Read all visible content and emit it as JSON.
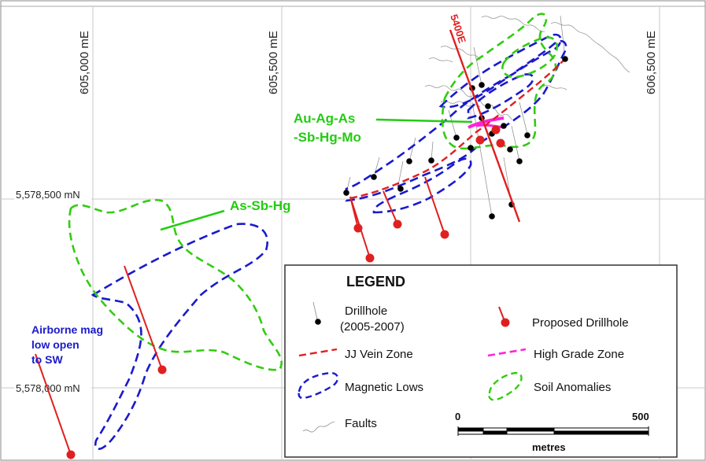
{
  "grid": {
    "eastings": [
      "605,000 mE",
      "605,500 mE",
      "606,000 mE",
      "606,500 mE"
    ],
    "northings": [
      "5,578,500 mN",
      "5,578,000 mN"
    ]
  },
  "annotations": {
    "au_ag_as_line1": "Au-Ag-As",
    "au_ag_as_line2": "-Sb-Hg-Mo",
    "as_sb_hg": "As-Sb-Hg",
    "airborne_line1": "Airborne mag",
    "airborne_line2": "low open",
    "airborne_line3": "to SW",
    "section_label": "5400E"
  },
  "legend": {
    "title": "LEGEND",
    "drillhole_line1": "Drillhole",
    "drillhole_line2": "(2005-2007)",
    "proposed": "Proposed Drillhole",
    "jj_vein": "JJ Vein Zone",
    "high_grade": "High Grade Zone",
    "magnetic_lows": "Magnetic Lows",
    "soil_anomalies": "Soil Anomalies",
    "faults": "Faults"
  },
  "scale_bar": {
    "start": "0",
    "end": "500",
    "unit": "metres"
  },
  "colors": {
    "soil": "#33cc11",
    "magnetic": "#1a1acc",
    "proposed": "#e02020",
    "vein": "#e02020",
    "high_grade": "#ff22dd",
    "fault": "#999999",
    "grid": "#c8c8c8"
  },
  "proposed_drillhole_count": 9,
  "existing_drillhole_count": 19
}
